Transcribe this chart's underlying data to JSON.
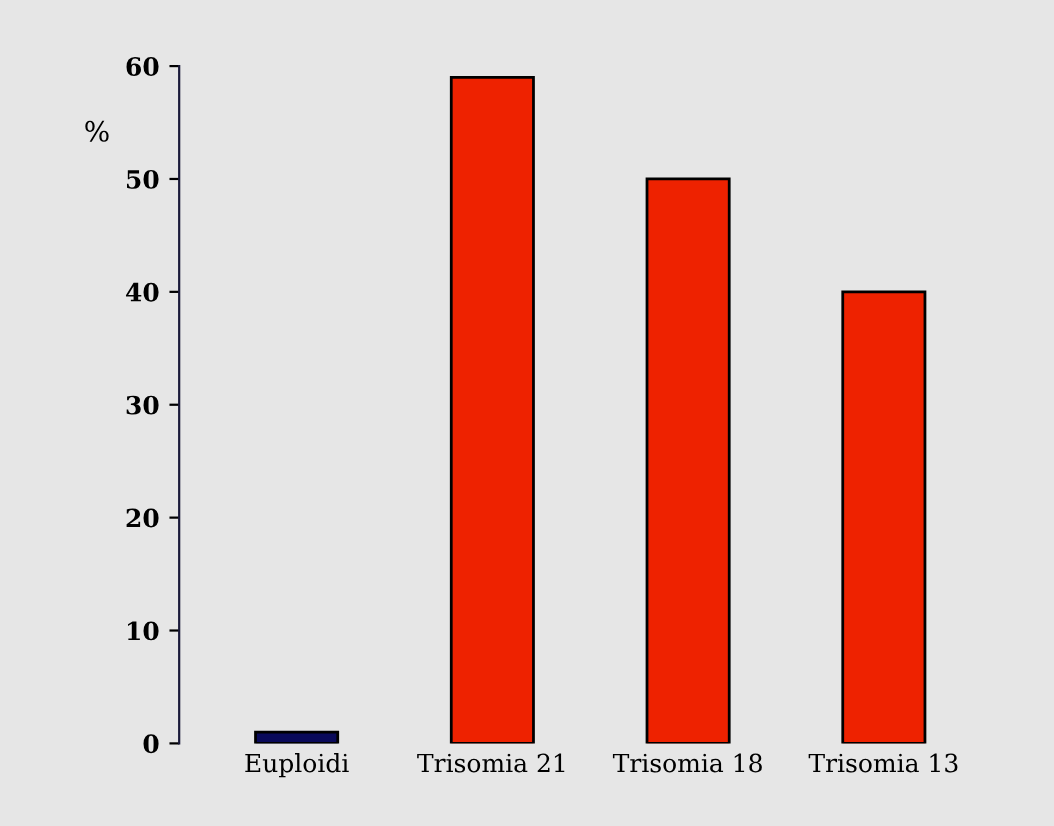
{
  "chart_data": {
    "type": "bar",
    "ylabel": "%",
    "categories": [
      "Euploidi",
      "Trisomia 21",
      "Trisomia 18",
      "Trisomia 13"
    ],
    "values": [
      1,
      59,
      50,
      40
    ],
    "colors": [
      "#0a0a5a",
      "#ee2200",
      "#ee2200",
      "#ee2200"
    ],
    "ylim": [
      0,
      60
    ],
    "yticks": [
      0,
      10,
      20,
      30,
      40,
      50,
      60
    ],
    "grid": false,
    "legend": false
  }
}
